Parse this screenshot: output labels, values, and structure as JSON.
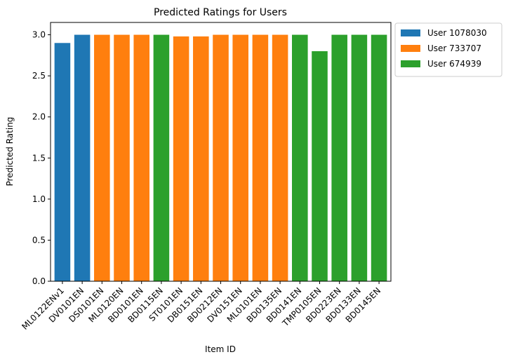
{
  "chart_data": {
    "type": "bar",
    "title": "Predicted Ratings for Users",
    "xlabel": "Item ID",
    "ylabel": "Predicted Rating",
    "categories": [
      "ML0122ENv1",
      "DV0101EN",
      "DS0101EN",
      "ML0120EN",
      "BD0101EN",
      "BD0115EN",
      "ST0101EN",
      "DB0151EN",
      "BD0212EN",
      "DV0151EN",
      "ML0101EN",
      "BD0135EN",
      "BD0141EN",
      "TMP0105EN",
      "BD0223EN",
      "BD0133EN",
      "BD0145EN"
    ],
    "series": [
      {
        "name": "User 1078030",
        "color": "#1f77b4",
        "values": [
          2.9,
          3.0,
          null,
          null,
          null,
          null,
          null,
          null,
          null,
          null,
          null,
          null,
          null,
          null,
          null,
          null,
          null
        ]
      },
      {
        "name": "User 733707",
        "color": "#ff7f0e",
        "values": [
          null,
          null,
          3.0,
          3.0,
          3.0,
          null,
          2.98,
          2.98,
          3.0,
          3.0,
          3.0,
          3.0,
          null,
          null,
          null,
          null,
          null
        ]
      },
      {
        "name": "User 674939",
        "color": "#2ca02c",
        "values": [
          null,
          null,
          null,
          null,
          null,
          3.0,
          null,
          null,
          null,
          null,
          null,
          null,
          3.0,
          2.8,
          3.0,
          3.0,
          3.0
        ]
      }
    ],
    "ylim": [
      0,
      3.15
    ],
    "yticks": [
      {
        "value": 0,
        "label": "0.0"
      },
      {
        "value": 0.5,
        "label": "0.5"
      },
      {
        "value": 1,
        "label": "1.0"
      },
      {
        "value": 1.5,
        "label": "1.5"
      },
      {
        "value": 2,
        "label": "2.0"
      },
      {
        "value": 2.5,
        "label": "2.5"
      },
      {
        "value": 3,
        "label": "3.0"
      }
    ]
  }
}
